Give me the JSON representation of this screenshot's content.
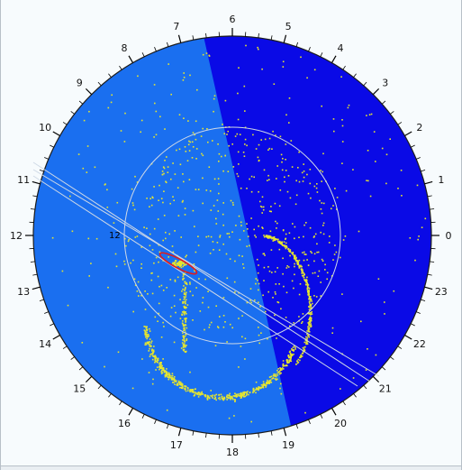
{
  "hour_labels": [
    "0",
    "1",
    "2",
    "3",
    "4",
    "5",
    "6",
    "7",
    "8",
    "9",
    "10",
    "11",
    "12",
    "13",
    "14",
    "15",
    "16",
    "17",
    "18",
    "19",
    "20",
    "21",
    "22",
    "23"
  ],
  "inner_label": "12",
  "colors": {
    "background": "#f7fbfd",
    "night_region": "#0a0ae6",
    "day_region": "#1a6ff0",
    "points": "#e6e62e",
    "highlight_ellipse": "#e01b1b",
    "reference_lines": "#cfd9e6",
    "ticks": "#000000"
  }
}
